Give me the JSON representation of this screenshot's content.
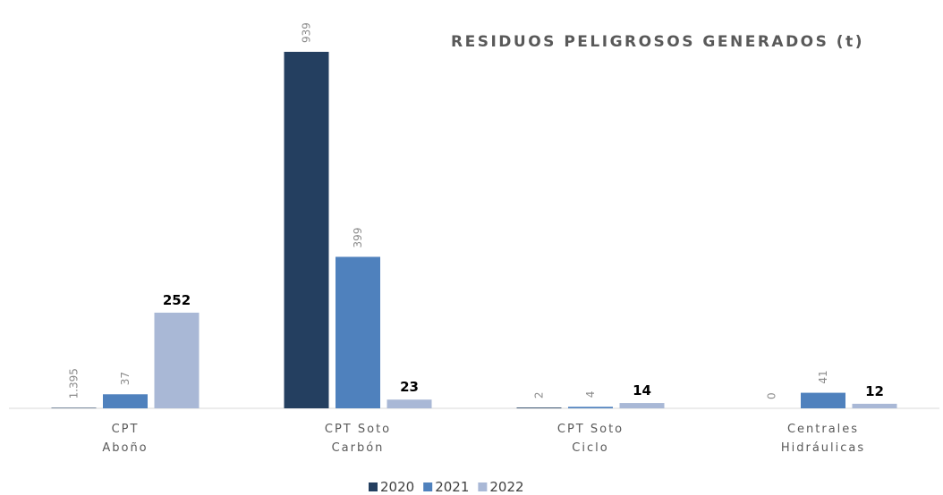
{
  "chart_data": {
    "type": "bar",
    "title": "RESIDUOS PELIGROSOS GENERADOS (t)",
    "categories": [
      [
        "CPT",
        "Aboño"
      ],
      [
        "CPT Soto",
        "Carbón"
      ],
      [
        "CPT Soto",
        "Ciclo"
      ],
      [
        "Centrales",
        "Hidráulicas"
      ]
    ],
    "series": [
      {
        "name": "2020",
        "color": "#243f60",
        "values": [
          1.395,
          939,
          2,
          0
        ]
      },
      {
        "name": "2021",
        "color": "#4f81bd",
        "values": [
          37,
          399,
          4,
          41
        ]
      },
      {
        "name": "2022",
        "color": "#a9b8d6",
        "values": [
          252,
          23,
          14,
          12
        ]
      }
    ],
    "legend": "bottom"
  }
}
